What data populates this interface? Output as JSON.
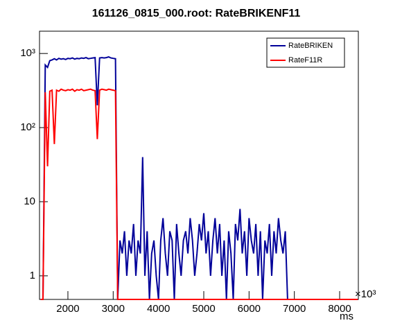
{
  "chart_data": {
    "type": "line",
    "title": "161126_0815_000.root: RateBRIKENF11",
    "x_label": "ms",
    "x_exponent": "×10³",
    "x": [
      1400,
      1450,
      1500,
      1550,
      1600,
      1650,
      1700,
      1750,
      1800,
      1850,
      1900,
      1950,
      2000,
      2050,
      2100,
      2150,
      2200,
      2250,
      2300,
      2350,
      2400,
      2450,
      2500,
      2550,
      2600,
      2650,
      2700,
      2750,
      2800,
      2850,
      2900,
      2950,
      3000,
      3050,
      3100,
      3150,
      3200,
      3250,
      3300,
      3350,
      3400,
      3450,
      3500,
      3550,
      3600,
      3650,
      3700,
      3750,
      3800,
      3850,
      3900,
      3950,
      4000,
      4050,
      4100,
      4150,
      4200,
      4250,
      4300,
      4350,
      4400,
      4450,
      4500,
      4550,
      4600,
      4650,
      4700,
      4750,
      4800,
      4850,
      4900,
      4950,
      5000,
      5050,
      5100,
      5150,
      5200,
      5250,
      5300,
      5350,
      5400,
      5450,
      5500,
      5550,
      5600,
      5650,
      5700,
      5750,
      5800,
      5850,
      5900,
      5950,
      6000,
      6050,
      6100,
      6150,
      6200,
      6250,
      6300,
      6350,
      6400,
      6450,
      6500,
      6550,
      6600,
      6650,
      6700,
      6750,
      6800,
      6850,
      6900,
      8400
    ],
    "series": [
      {
        "name": "RateBRIKEN",
        "color": "#000099",
        "values": [
          0,
          0,
          700,
          650,
          800,
          820,
          850,
          820,
          860,
          840,
          850,
          830,
          860,
          850,
          870,
          840,
          860,
          850,
          870,
          860,
          880,
          850,
          860,
          870,
          880,
          200,
          870,
          880,
          870,
          880,
          900,
          870,
          860,
          850,
          0,
          3,
          2,
          4,
          1,
          3,
          2,
          5,
          1,
          3,
          2,
          40,
          1,
          4,
          0,
          2,
          3,
          1,
          0,
          3,
          6,
          2,
          1,
          4,
          3,
          0,
          5,
          2,
          1,
          3,
          4,
          2,
          6,
          3,
          1,
          2,
          5,
          3,
          7,
          2,
          4,
          1,
          3,
          6,
          2,
          5,
          1,
          3,
          0,
          4,
          2,
          0,
          5,
          3,
          8,
          2,
          4,
          1,
          6,
          3,
          2,
          5,
          1,
          4,
          0,
          3,
          2,
          5,
          1,
          4,
          2,
          6,
          3,
          2,
          4,
          0,
          0,
          0
        ]
      },
      {
        "name": "RateF11R",
        "color": "#ff0000",
        "values": [
          0,
          0,
          300,
          30,
          310,
          320,
          60,
          320,
          310,
          330,
          320,
          315,
          325,
          320,
          330,
          310,
          325,
          320,
          330,
          315,
          320,
          325,
          330,
          320,
          315,
          70,
          320,
          330,
          325,
          320,
          330,
          325,
          320,
          315,
          0,
          0,
          0,
          0,
          0,
          0,
          0,
          0,
          0,
          0,
          0,
          0,
          0,
          0,
          0,
          0,
          0,
          0,
          0,
          0,
          0,
          0,
          0,
          0,
          0,
          0,
          0,
          0,
          0,
          0,
          0,
          0,
          0,
          0,
          0,
          0,
          0,
          0,
          0,
          0,
          0,
          0,
          0,
          0,
          0,
          0,
          0,
          0,
          0,
          0,
          0,
          0,
          0,
          0,
          0,
          0,
          0,
          0,
          0,
          0,
          0,
          0,
          0,
          0,
          0,
          0,
          0,
          0,
          0,
          0,
          0,
          0,
          0,
          0,
          0,
          0,
          0,
          0
        ]
      }
    ],
    "xlim": [
      1373,
      8413
    ],
    "xticks": [
      2000,
      3000,
      4000,
      5000,
      6000,
      7000,
      8000
    ],
    "ylim": [
      0.48,
      2000
    ],
    "yticks": [
      1,
      10,
      {
        "value": 100,
        "label": "10²"
      },
      {
        "value": 1000,
        "label": "10³"
      }
    ],
    "log_y": true,
    "legend": "top-right"
  }
}
